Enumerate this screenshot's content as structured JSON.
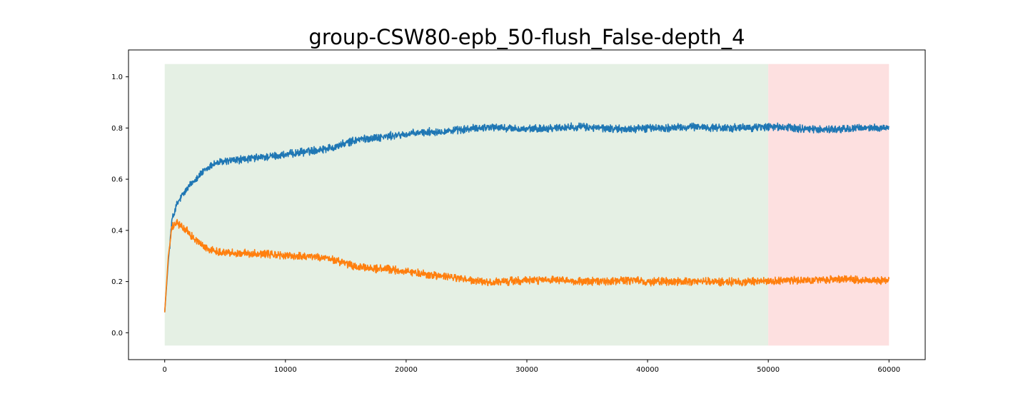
{
  "chart_data": {
    "type": "line",
    "title": "group-CSW80-epb_50-flush_False-depth_4",
    "xlabel": "",
    "ylabel": "",
    "xlim": [
      -3000,
      63000
    ],
    "ylim": [
      -0.105,
      1.105
    ],
    "x_ticks": [
      0,
      10000,
      20000,
      30000,
      40000,
      50000,
      60000
    ],
    "x_tick_labels": [
      "0",
      "10000",
      "20000",
      "30000",
      "40000",
      "50000",
      "60000"
    ],
    "y_ticks": [
      0.0,
      0.2,
      0.4,
      0.6,
      0.8,
      1.0
    ],
    "y_tick_labels": [
      "0.0",
      "0.2",
      "0.4",
      "0.6",
      "0.8",
      "1.0"
    ],
    "grid": false,
    "legend": "none",
    "shaded_regions": [
      {
        "x": [
          0,
          50000
        ],
        "y": [
          -0.05,
          1.05
        ],
        "color": "#e5f0e4"
      },
      {
        "x": [
          50000,
          60000
        ],
        "y": [
          -0.05,
          1.05
        ],
        "color": "#fde0e0"
      }
    ],
    "series": [
      {
        "color": "#1f77b4",
        "x": [
          0,
          300,
          600,
          1000,
          1500,
          2000,
          2500,
          3000,
          3500,
          4000,
          5000,
          6000,
          8000,
          10000,
          12000,
          14000,
          15000,
          16000,
          18000,
          20000,
          22000,
          24000,
          26000,
          27000,
          28000,
          30000,
          32000,
          34000,
          36000,
          38000,
          40000,
          42000,
          44000,
          46000,
          48000,
          50000,
          52000,
          54000,
          56000,
          58000,
          60000
        ],
        "values": [
          0.08,
          0.28,
          0.44,
          0.5,
          0.54,
          0.57,
          0.6,
          0.62,
          0.64,
          0.66,
          0.67,
          0.675,
          0.685,
          0.695,
          0.71,
          0.725,
          0.74,
          0.755,
          0.765,
          0.775,
          0.785,
          0.79,
          0.8,
          0.805,
          0.8,
          0.795,
          0.8,
          0.805,
          0.8,
          0.795,
          0.8,
          0.8,
          0.805,
          0.8,
          0.8,
          0.805,
          0.8,
          0.795,
          0.795,
          0.8,
          0.8
        ],
        "noise": 0.012
      },
      {
        "color": "#ff7f0e",
        "x": [
          0,
          300,
          600,
          1000,
          1500,
          2000,
          2500,
          3000,
          3500,
          4000,
          5000,
          6000,
          8000,
          10000,
          12000,
          14000,
          15000,
          16000,
          18000,
          20000,
          22000,
          24000,
          26000,
          27000,
          28000,
          30000,
          32000,
          34000,
          36000,
          38000,
          40000,
          42000,
          44000,
          46000,
          48000,
          50000,
          52000,
          54000,
          56000,
          58000,
          60000
        ],
        "values": [
          0.08,
          0.3,
          0.41,
          0.43,
          0.41,
          0.39,
          0.365,
          0.345,
          0.33,
          0.32,
          0.315,
          0.31,
          0.31,
          0.3,
          0.3,
          0.285,
          0.27,
          0.255,
          0.25,
          0.24,
          0.225,
          0.215,
          0.2,
          0.195,
          0.2,
          0.205,
          0.205,
          0.2,
          0.2,
          0.205,
          0.2,
          0.2,
          0.2,
          0.2,
          0.2,
          0.2,
          0.205,
          0.205,
          0.21,
          0.205,
          0.205
        ],
        "noise": 0.012
      }
    ]
  }
}
